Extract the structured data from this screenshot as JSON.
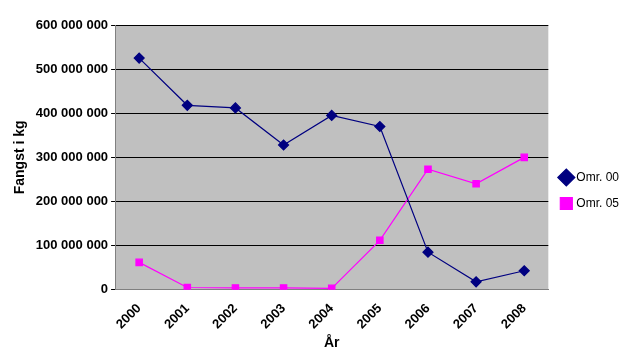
{
  "chart_data": {
    "type": "line",
    "x_label": "År",
    "y_label": "Fangst i kg",
    "categories": [
      "2000",
      "2001",
      "2002",
      "2003",
      "2004",
      "2005",
      "2006",
      "2007",
      "2008"
    ],
    "series": [
      {
        "name": "Omr. 00",
        "color": "#000080",
        "marker": "diamond",
        "values": [
          525000000,
          418000000,
          412000000,
          328000000,
          395000000,
          370000000,
          85000000,
          18000000,
          43000000
        ]
      },
      {
        "name": "Omr. 05",
        "color": "#ff00ff",
        "marker": "square",
        "values": [
          62000000,
          5000000,
          4000000,
          4000000,
          3000000,
          112000000,
          273000000,
          240000000,
          300000000
        ]
      }
    ],
    "ylim": [
      0,
      600000000
    ],
    "yticks": [
      0,
      {
        "value": 100000000,
        "label": "100 000 000"
      },
      {
        "value": 200000000,
        "label": "200 000 000"
      },
      {
        "value": 300000000,
        "label": "300 000 000"
      },
      {
        "value": 400000000,
        "label": "400 000 000"
      },
      {
        "value": 500000000,
        "label": "500 000 000"
      },
      {
        "value": 600000000,
        "label": "600 000 000"
      }
    ],
    "grid": true,
    "legend": "right"
  }
}
